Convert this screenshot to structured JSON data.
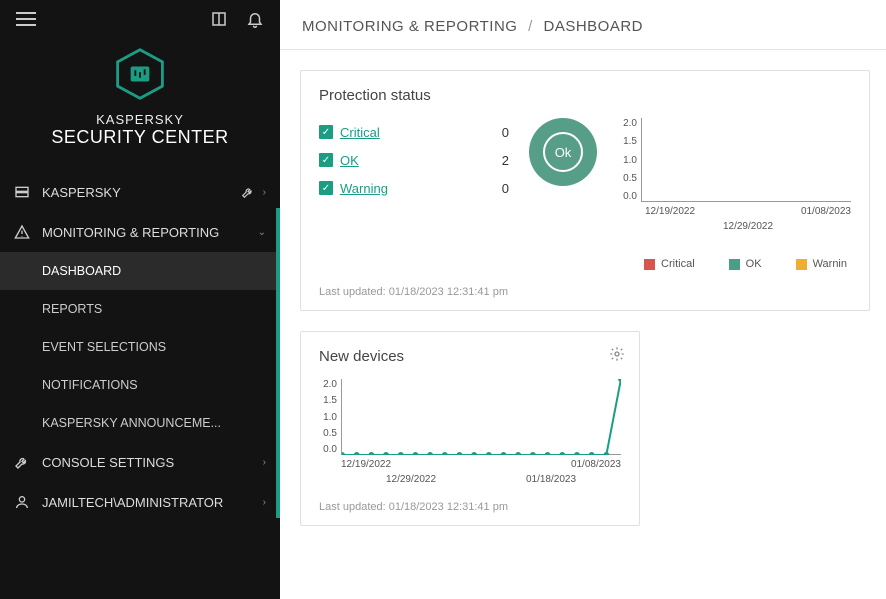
{
  "brand": {
    "line1": "KASPERSKY",
    "line2": "SECURITY CENTER"
  },
  "breadcrumb": {
    "section": "MONITORING & REPORTING",
    "page": "DASHBOARD"
  },
  "nav": {
    "kaspersky": "KASPERSKY",
    "monitoring": "MONITORING & REPORTING",
    "sub": {
      "dashboard": "DASHBOARD",
      "reports": "REPORTS",
      "events": "EVENT SELECTIONS",
      "notifications": "NOTIFICATIONS",
      "announce": "KASPERSKY ANNOUNCEME..."
    },
    "console": "CONSOLE SETTINGS",
    "user": "JAMILTECH\\ADMINISTRATOR"
  },
  "colors": {
    "accent": "#1b9d84",
    "critical": "#d9534f",
    "ok": "#4a9d87",
    "warning": "#f0ad2e",
    "sidebar_bg": "#131313",
    "panel_border": "#e0e0e0"
  },
  "protection": {
    "title": "Protection status",
    "items": [
      {
        "label": "Critical",
        "value": 0
      },
      {
        "label": "OK",
        "value": 2
      },
      {
        "label": "Warning",
        "value": 0
      }
    ],
    "donut_label": "Ok",
    "chart": {
      "ylim": [
        0.0,
        2.0
      ],
      "yticks": [
        "2.0",
        "1.5",
        "1.0",
        "0.5",
        "0.0"
      ],
      "x_major": [
        "12/19/2022",
        "01/08/2023"
      ],
      "x_minor": "12/29/2022"
    },
    "legend": [
      {
        "label": "Critical",
        "color": "#d9534f"
      },
      {
        "label": "OK",
        "color": "#4a9d87"
      },
      {
        "label": "Warnin",
        "color": "#f0ad2e"
      }
    ],
    "updated": "Last updated: 01/18/2023 12:31:41 pm"
  },
  "newdevices": {
    "title": "New devices",
    "yticks": [
      "2.0",
      "1.5",
      "1.0",
      "0.5",
      "0.0"
    ],
    "ylim": [
      0.0,
      2.0
    ],
    "x_top": [
      "12/19/2022",
      "01/08/2023"
    ],
    "x_bottom": [
      "12/29/2022",
      "01/18/2023"
    ],
    "series": {
      "color": "#1b9d84",
      "points_y": [
        0,
        0,
        0,
        0,
        0,
        0,
        0,
        0,
        0,
        0,
        0,
        0,
        0,
        0,
        0,
        0,
        0,
        0,
        0,
        2
      ],
      "marker": "circle",
      "marker_size": 3
    },
    "updated": "Last updated: 01/18/2023 12:31:41 pm"
  }
}
